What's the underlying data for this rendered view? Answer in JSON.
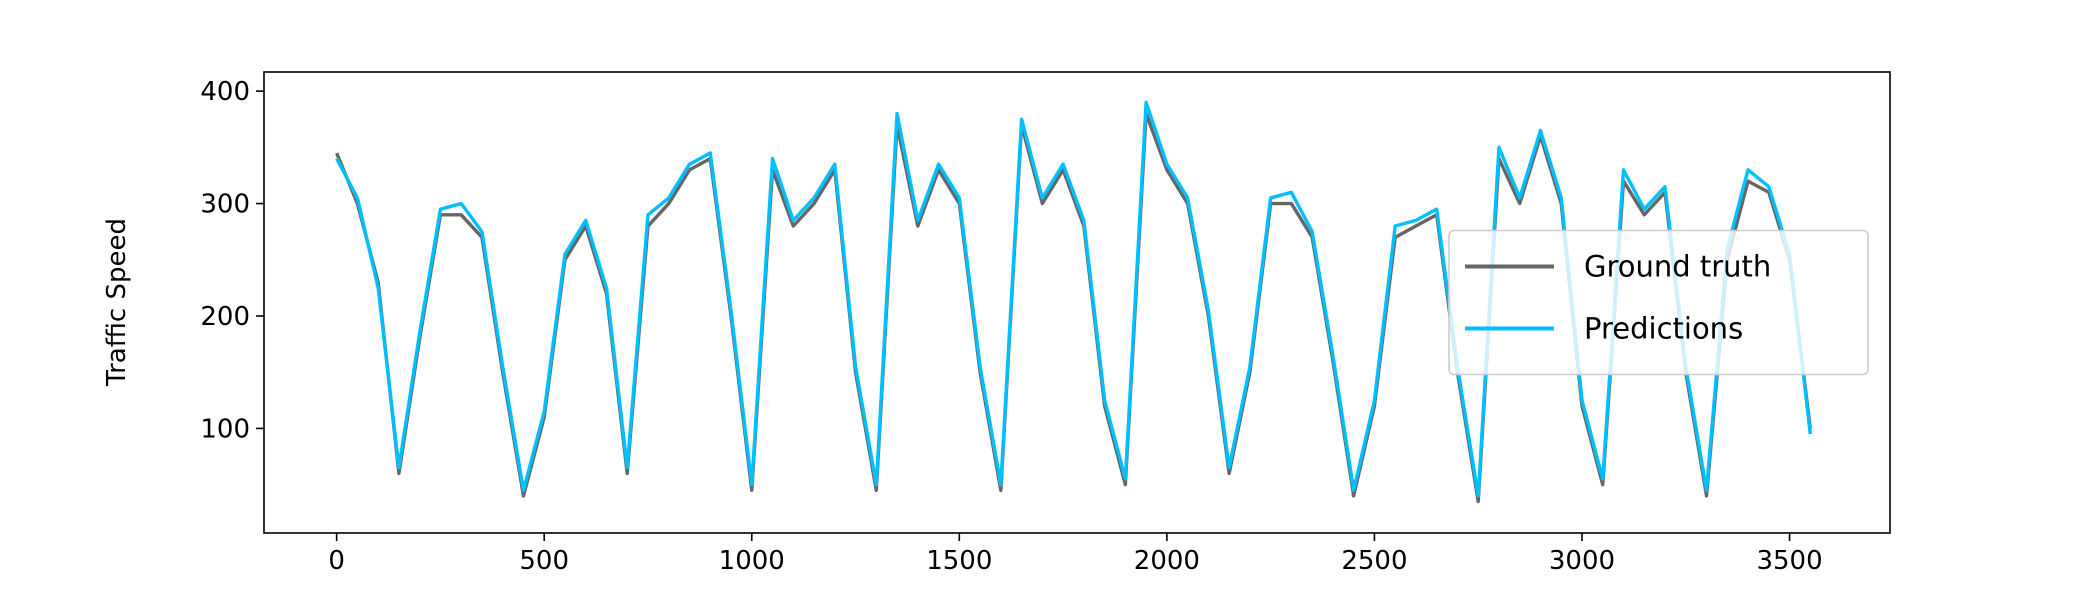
{
  "chart_data": {
    "type": "line",
    "y_label": "Traffic Speed",
    "x": [
      0,
      50,
      100,
      150,
      200,
      250,
      300,
      350,
      400,
      450,
      500,
      550,
      600,
      650,
      700,
      750,
      800,
      850,
      900,
      950,
      1000,
      1050,
      1100,
      1150,
      1200,
      1250,
      1300,
      1350,
      1400,
      1450,
      1500,
      1550,
      1600,
      1650,
      1700,
      1750,
      1800,
      1850,
      1900,
      1950,
      2000,
      2050,
      2100,
      2150,
      2200,
      2250,
      2300,
      2350,
      2400,
      2450,
      2500,
      2550,
      2600,
      2650,
      2700,
      2750,
      2800,
      2850,
      2900,
      2950,
      3000,
      3050,
      3100,
      3150,
      3200,
      3250,
      3300,
      3350,
      3400,
      3450,
      3500,
      3550
    ],
    "series": [
      {
        "name": "Ground truth",
        "color": "#666666",
        "values": [
          345,
          300,
          230,
          60,
          180,
          290,
          290,
          270,
          150,
          40,
          110,
          250,
          280,
          220,
          60,
          280,
          300,
          330,
          340,
          200,
          45,
          330,
          280,
          300,
          330,
          150,
          45,
          370,
          280,
          330,
          300,
          150,
          45,
          370,
          300,
          330,
          280,
          120,
          50,
          380,
          330,
          300,
          200,
          60,
          150,
          300,
          300,
          270,
          160,
          40,
          120,
          270,
          280,
          290,
          150,
          35,
          340,
          300,
          360,
          300,
          120,
          50,
          320,
          290,
          310,
          150,
          40,
          250,
          320,
          310,
          250,
          100
        ]
      },
      {
        "name": "Predictions",
        "color": "#00bfff",
        "values": [
          340,
          305,
          225,
          65,
          185,
          295,
          300,
          275,
          155,
          45,
          115,
          255,
          285,
          225,
          65,
          290,
          305,
          335,
          345,
          205,
          50,
          340,
          285,
          305,
          335,
          155,
          50,
          380,
          285,
          335,
          305,
          155,
          50,
          375,
          305,
          335,
          285,
          125,
          55,
          390,
          335,
          305,
          205,
          65,
          155,
          305,
          310,
          275,
          165,
          45,
          125,
          280,
          285,
          295,
          155,
          40,
          350,
          305,
          365,
          305,
          125,
          55,
          330,
          295,
          315,
          155,
          45,
          260,
          330,
          315,
          255,
          95
        ]
      }
    ],
    "xlim": [
      -175,
      3742
    ],
    "ylim": [
      7,
      417
    ],
    "xticks": [
      0,
      500,
      1000,
      1500,
      2000,
      2500,
      3000,
      3500
    ],
    "yticks": [
      100,
      200,
      300,
      400
    ],
    "grid": false,
    "legend": "center right"
  }
}
